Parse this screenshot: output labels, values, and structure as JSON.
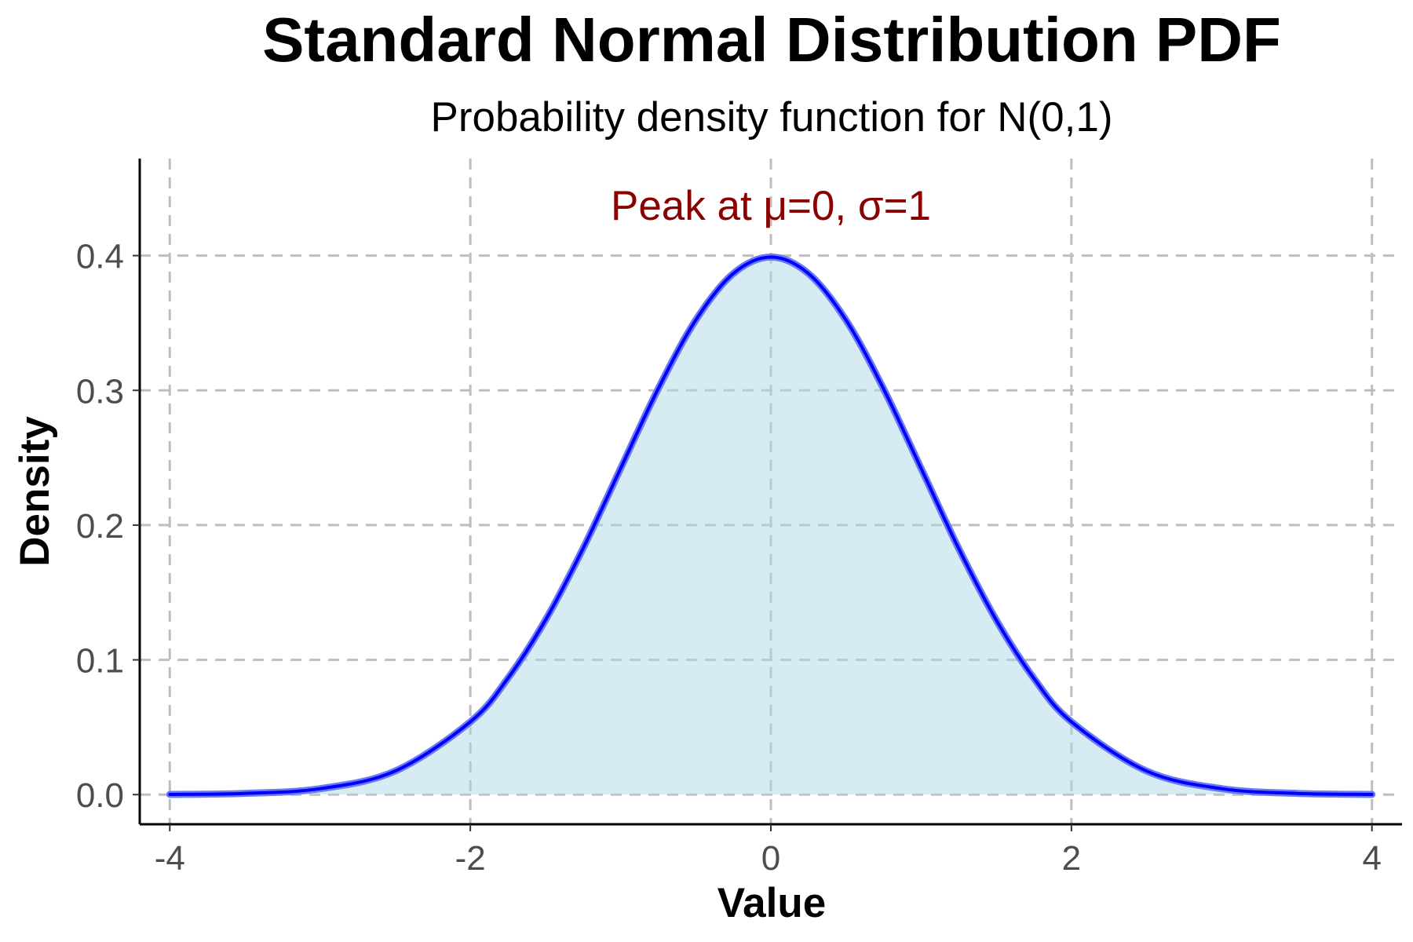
{
  "chart_data": {
    "type": "area",
    "title": "Standard Normal Distribution PDF",
    "subtitle": "Probability density function for N(0,1)",
    "xlabel": "Value",
    "ylabel": "Density",
    "xlim": [
      -4.2,
      4.2
    ],
    "ylim": [
      -0.022,
      0.472
    ],
    "x_ticks": [
      -4,
      -2,
      0,
      2,
      4
    ],
    "x_tick_labels": [
      "-4",
      "-2",
      "0",
      "2",
      "4"
    ],
    "y_ticks": [
      0.0,
      0.1,
      0.2,
      0.3,
      0.4
    ],
    "y_tick_labels": [
      "0.0",
      "0.1",
      "0.2",
      "0.3",
      "0.4"
    ],
    "grid": true,
    "series": [
      {
        "x": [
          -4.0,
          -3.5,
          -3.0,
          -2.5,
          -2.0,
          -1.75,
          -1.5,
          -1.25,
          -1.0,
          -0.75,
          -0.5,
          -0.25,
          0.0,
          0.25,
          0.5,
          0.75,
          1.0,
          1.25,
          1.5,
          1.75,
          2.0,
          2.5,
          3.0,
          3.5,
          4.0
        ],
        "y": [
          0.0001,
          0.0009,
          0.0044,
          0.0175,
          0.054,
          0.0863,
          0.1295,
          0.1826,
          0.242,
          0.3011,
          0.3521,
          0.3867,
          0.3989,
          0.3867,
          0.3521,
          0.3011,
          0.242,
          0.1826,
          0.1295,
          0.0863,
          0.054,
          0.0175,
          0.0044,
          0.0009,
          0.0001
        ]
      }
    ],
    "annotation": {
      "text": "Peak at μ=0, σ=1",
      "x": 0,
      "y": 0.437
    },
    "colors": {
      "line": "#0000ff",
      "fill": "#add8e6",
      "annotation": "#8b0000",
      "grid": "#bebebe"
    }
  }
}
